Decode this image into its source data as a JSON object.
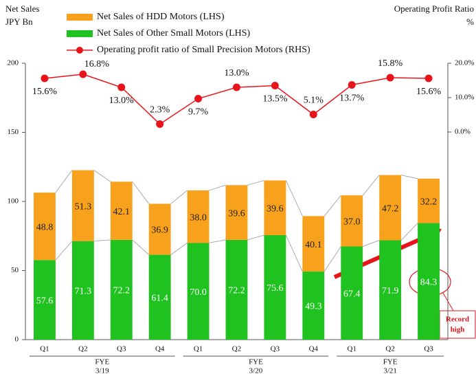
{
  "chart_data": {
    "type": "stacked_bar_line",
    "y_axis_title": [
      "Net Sales",
      "JPY Bn"
    ],
    "y2_axis_title": [
      "Operating Profit Ratio",
      "%"
    ],
    "categories": [
      "Q1",
      "Q2",
      "Q3",
      "Q4",
      "Q1",
      "Q2",
      "Q3",
      "Q4",
      "Q1",
      "Q2",
      "Q3"
    ],
    "category_groups": [
      {
        "label": [
          "FYE",
          "3/19"
        ],
        "count": 4
      },
      {
        "label": [
          "FYE",
          "3/20"
        ],
        "count": 4
      },
      {
        "label": [
          "FYE",
          "3/21"
        ],
        "count": 3
      }
    ],
    "series": [
      {
        "name": "Net Sales of Other Small Motors (LHS)",
        "color": "#1fc21f",
        "type": "bar",
        "values": [
          57.6,
          71.3,
          72.2,
          61.4,
          70.0,
          72.2,
          75.6,
          49.3,
          67.4,
          71.9,
          84.3
        ],
        "value_labels": [
          "57.6",
          "71.3",
          "72.2",
          "61.4",
          "70.0",
          "72.2",
          "75.6",
          "49.3",
          "67.4",
          "71.9",
          "84.3"
        ]
      },
      {
        "name": "Net Sales of HDD Motors (LHS)",
        "color": "#f8a11c",
        "type": "bar",
        "values": [
          48.8,
          51.3,
          42.1,
          36.9,
          38.0,
          39.6,
          39.6,
          40.1,
          37.0,
          47.2,
          32.2
        ],
        "value_labels": [
          "48.8",
          "51.3",
          "42.1",
          "36.9",
          "38.0",
          "39.6",
          "39.6",
          "40.1",
          "37.0",
          "47.2",
          "32.2"
        ]
      },
      {
        "name": "Operating profit ratio of Small Precision Motors (RHS)",
        "color": "#e8141c",
        "type": "line",
        "axis": "y2",
        "values": [
          15.6,
          16.8,
          13.0,
          2.3,
          9.7,
          13.0,
          13.5,
          5.1,
          13.7,
          15.8,
          15.6
        ],
        "value_labels": [
          "15.6%",
          "16.8%",
          "13.0%",
          "2.3%",
          "9.7%",
          "13.0%",
          "13.5%",
          "5.1%",
          "13.7%",
          "15.8%",
          "15.6%"
        ]
      }
    ],
    "legend_order": [
      1,
      0,
      2
    ],
    "ylim": [
      0,
      200
    ],
    "yticks": [
      0,
      50,
      100,
      150,
      200
    ],
    "y2lim": [
      -60.4,
      20
    ],
    "y2ticks": [
      {
        "value": 0,
        "label": "0.0%"
      },
      {
        "value": 10,
        "label": "10.0%"
      },
      {
        "value": 20,
        "label": "20.0%"
      }
    ],
    "annotation": [
      "Record",
      "high"
    ]
  }
}
